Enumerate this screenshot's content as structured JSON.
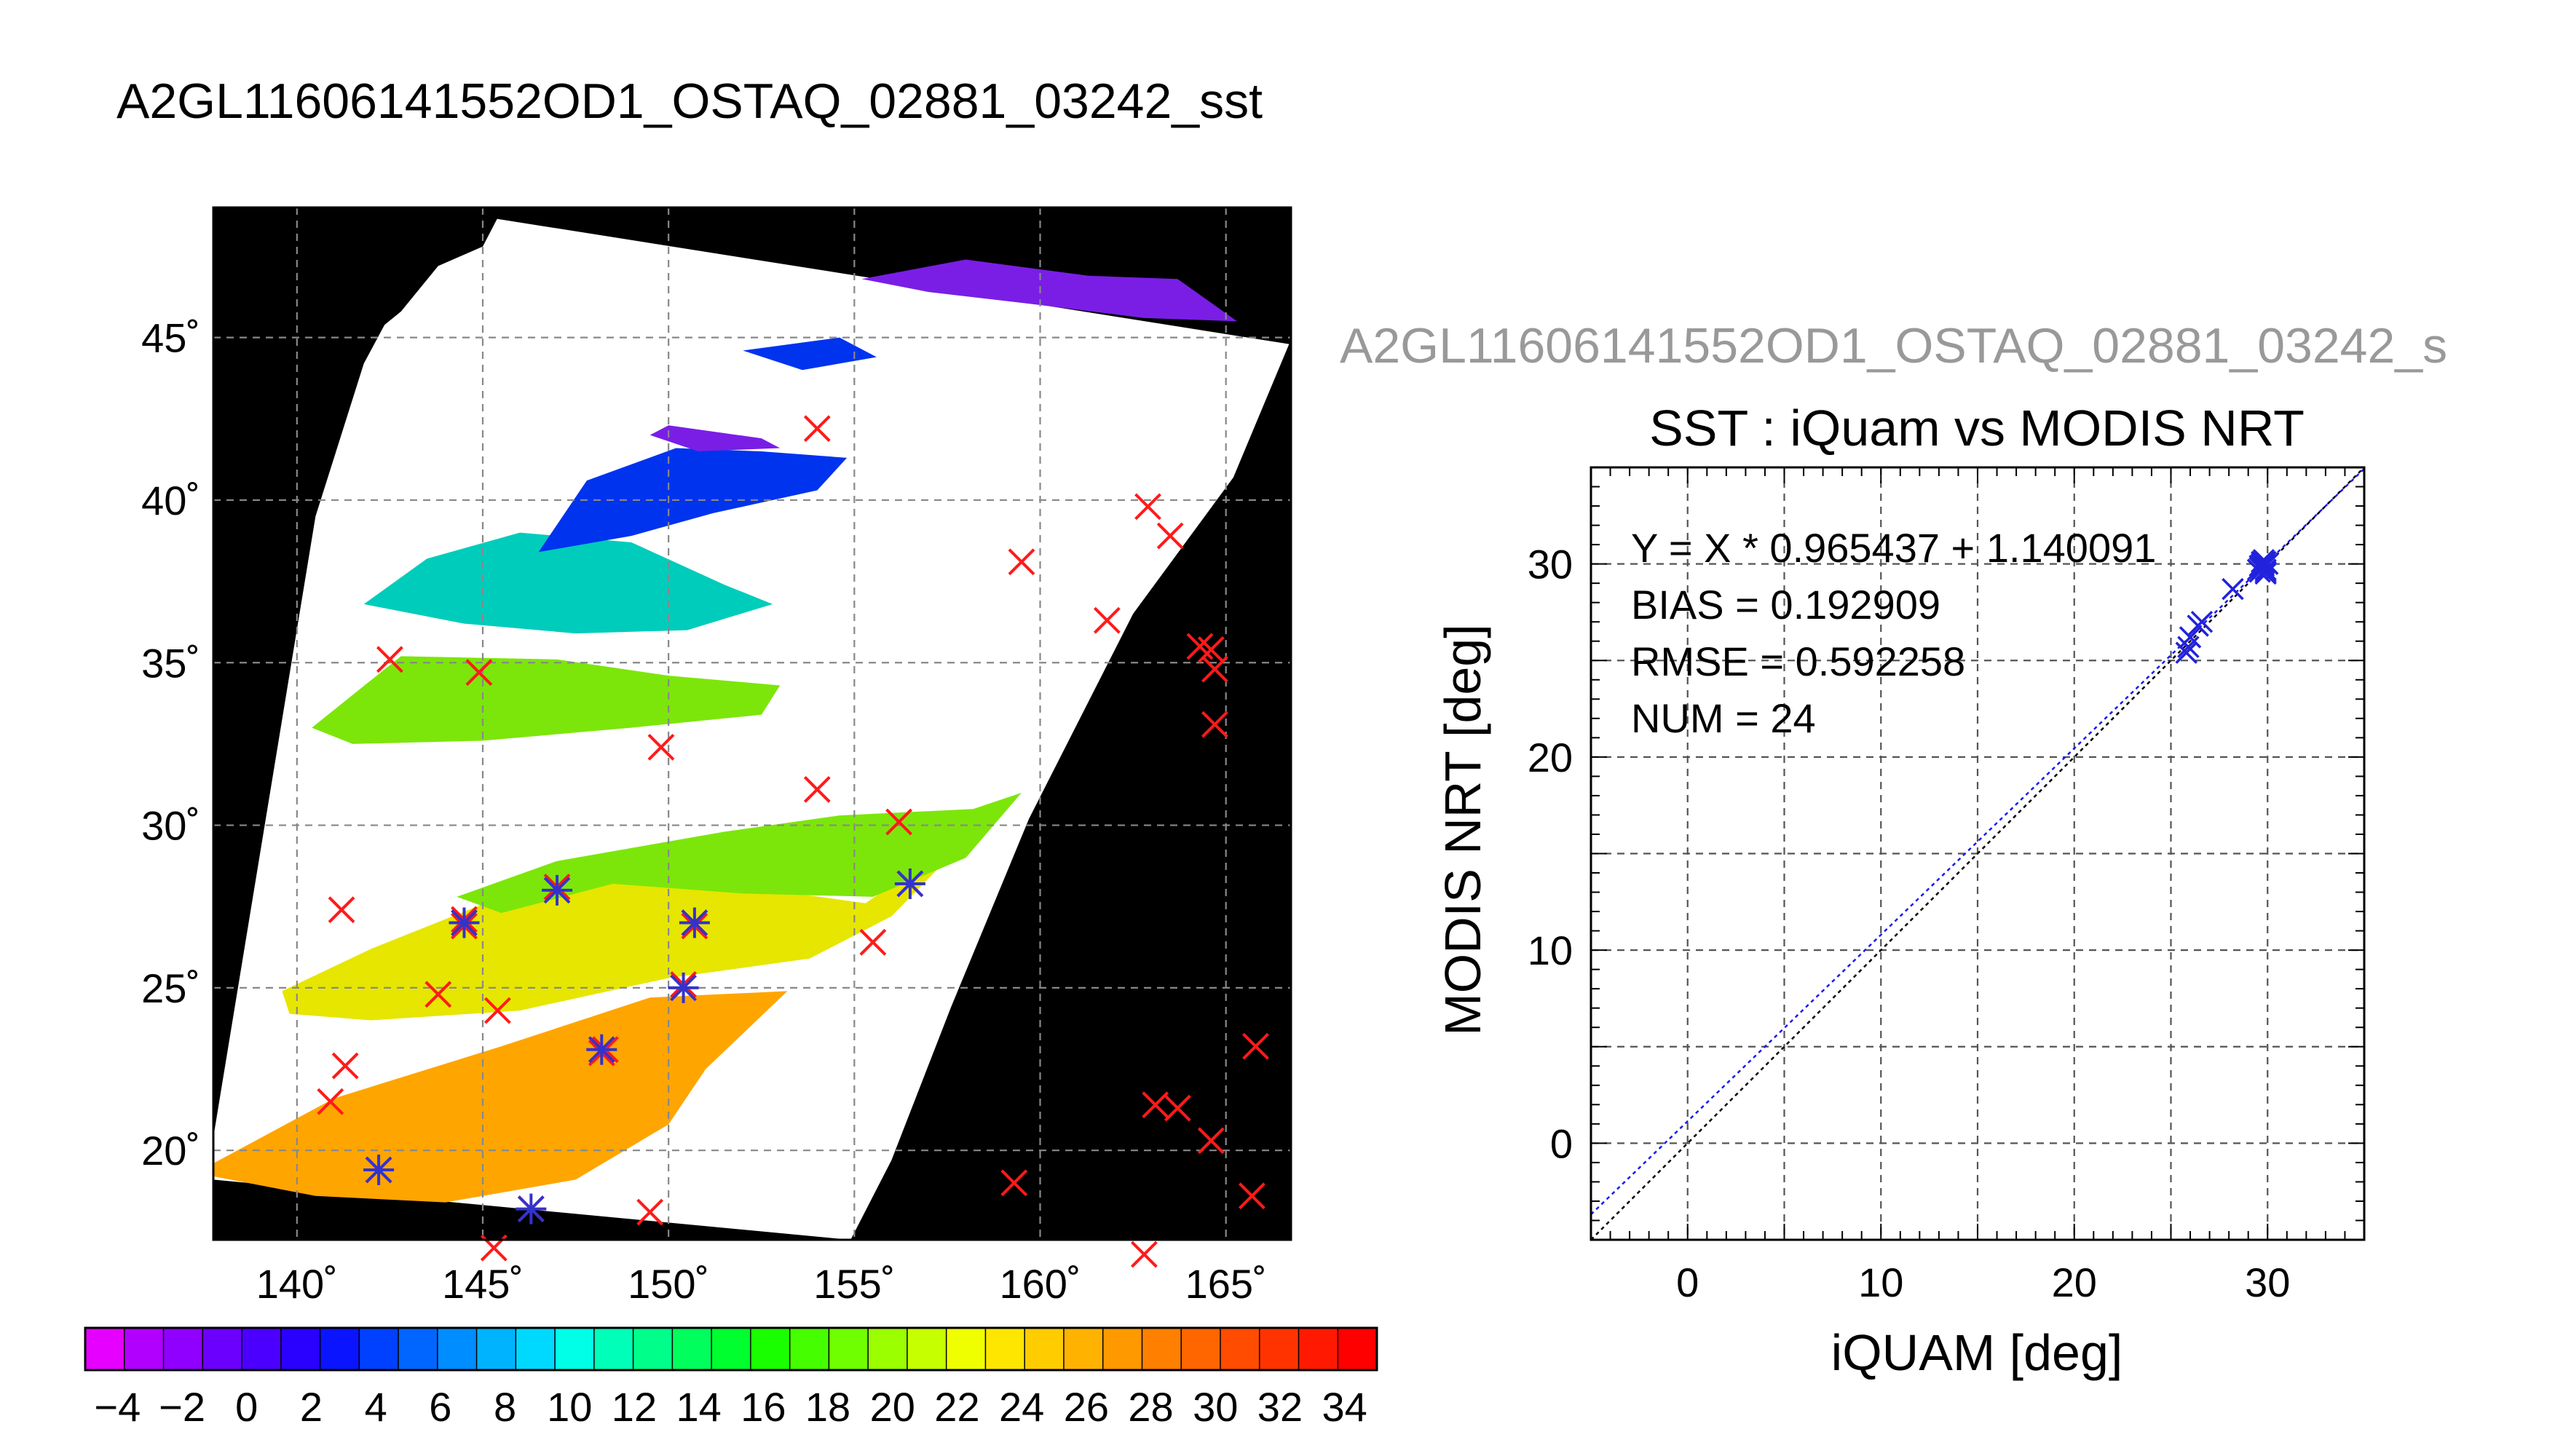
{
  "figure_title": "A2GL11606141552OD1_OSTAQ_02881_03242_sst",
  "chart_data": [
    {
      "type": "map",
      "title": "",
      "lon_ticks": [
        140,
        145,
        150,
        155,
        160,
        165
      ],
      "lat_ticks": [
        20,
        25,
        30,
        35,
        40,
        45
      ],
      "lon_tick_labels": [
        "140˚",
        "145˚",
        "150˚",
        "155˚",
        "160˚",
        "165˚"
      ],
      "lat_tick_labels": [
        "20˚",
        "25˚",
        "30˚",
        "35˚",
        "40˚",
        "45˚"
      ],
      "lon_range": [
        137.75,
        166.75
      ],
      "lat_range": [
        17.25,
        49.0
      ],
      "grid": true,
      "sst_bands": [
        {
          "label": "orange",
          "color": "#ffa500"
        },
        {
          "label": "yellow",
          "color": "#e6e600"
        },
        {
          "label": "light-green",
          "color": "#7ce60a"
        },
        {
          "label": "cyan",
          "color": "#00ccbb"
        },
        {
          "label": "blue",
          "color": "#0033ee"
        },
        {
          "label": "violet",
          "color": "#7a1ee6"
        }
      ],
      "buoy_points_red_x": [
        [
          154.0,
          42.2
        ],
        [
          162.9,
          39.8
        ],
        [
          163.5,
          38.9
        ],
        [
          159.5,
          38.1
        ],
        [
          161.8,
          36.3
        ],
        [
          164.3,
          35.5
        ],
        [
          164.6,
          35.4
        ],
        [
          164.7,
          34.8
        ],
        [
          164.7,
          33.1
        ],
        [
          142.5,
          35.1
        ],
        [
          144.9,
          34.7
        ],
        [
          149.8,
          32.4
        ],
        [
          154.0,
          31.1
        ],
        [
          156.2,
          30.1
        ],
        [
          141.2,
          27.4
        ],
        [
          144.5,
          27.1
        ],
        [
          144.5,
          26.9
        ],
        [
          147.0,
          28.1
        ],
        [
          150.7,
          26.9
        ],
        [
          156.5,
          28.2
        ],
        [
          155.5,
          26.4
        ],
        [
          143.8,
          24.8
        ],
        [
          145.4,
          24.3
        ],
        [
          150.4,
          25.1
        ],
        [
          148.3,
          23.1
        ],
        [
          148.2,
          23.0
        ],
        [
          141.3,
          22.6
        ],
        [
          140.9,
          21.5
        ],
        [
          163.1,
          21.4
        ],
        [
          163.7,
          21.3
        ],
        [
          165.8,
          23.2
        ],
        [
          164.6,
          20.3
        ],
        [
          142.2,
          19.4
        ],
        [
          146.3,
          18.2
        ],
        [
          149.5,
          18.1
        ],
        [
          159.3,
          19.0
        ],
        [
          165.7,
          18.6
        ],
        [
          145.3,
          17.0
        ],
        [
          162.8,
          16.8
        ]
      ],
      "matched_points_blue_star": [
        [
          144.5,
          27.0
        ],
        [
          147.0,
          28.0
        ],
        [
          150.7,
          27.0
        ],
        [
          156.5,
          28.2
        ],
        [
          150.4,
          25.0
        ],
        [
          148.2,
          23.1
        ],
        [
          142.2,
          19.4
        ],
        [
          146.3,
          18.2
        ]
      ]
    },
    {
      "type": "colorbar",
      "tick_labels": [
        "−4",
        "−2",
        "0",
        "2",
        "4",
        "6",
        "8",
        "10",
        "12",
        "14",
        "16",
        "18",
        "20",
        "22",
        "24",
        "26",
        "28",
        "30",
        "32",
        "34"
      ],
      "range": [
        -5,
        35
      ],
      "colors": [
        "#e600ff",
        "#b200ff",
        "#9000ff",
        "#6c00ff",
        "#4b00ff",
        "#2a00ff",
        "#0a14ff",
        "#0040ff",
        "#0066ff",
        "#008dff",
        "#00b3ff",
        "#00d9ff",
        "#00ffe6",
        "#00ffb8",
        "#00ff8a",
        "#00ff5c",
        "#00ff2e",
        "#1aff00",
        "#45ff00",
        "#70ff00",
        "#9bff00",
        "#c6ff00",
        "#f0ff00",
        "#ffe600",
        "#ffcc00",
        "#ffb300",
        "#ff9900",
        "#ff7f00",
        "#ff6600",
        "#ff4c00",
        "#ff3300",
        "#ff1900",
        "#ff0000"
      ]
    },
    {
      "type": "scatter",
      "overflow_title": "A2GL11606141552OD1_OSTAQ_02881_03242_s",
      "title": "SST : iQuam vs MODIS NRT",
      "xlabel": "iQUAM [deg]",
      "ylabel": "MODIS NRT [deg]",
      "xlim": [
        -5,
        35
      ],
      "ylim": [
        -5,
        35
      ],
      "xticks": [
        0,
        10,
        20,
        30
      ],
      "yticks": [
        0,
        10,
        20,
        30
      ],
      "grid": true,
      "stats": {
        "equation": "Y = X * 0.965437 + 1.140091",
        "bias": "BIAS = 0.192909",
        "rmse": "RMSE = 0.592258",
        "num": "NUM = 24"
      },
      "fit_line": {
        "slope": 0.965437,
        "intercept": 1.140091
      },
      "one_to_one_line": {
        "slope": 1,
        "intercept": 0
      },
      "series": [
        {
          "x": [
            25.8,
            25.9,
            26.0,
            26.4,
            26.6,
            28.2,
            29.5,
            29.6,
            29.7,
            29.8,
            29.8,
            29.9,
            29.9,
            30.0,
            29.6,
            29.7,
            29.8,
            29.7,
            29.9,
            29.8,
            29.6,
            29.7,
            29.8,
            29.9
          ],
          "y": [
            25.4,
            25.7,
            26.2,
            26.8,
            27.0,
            28.7,
            29.7,
            29.9,
            30.0,
            30.1,
            29.8,
            30.1,
            29.5,
            30.0,
            29.6,
            29.8,
            30.2,
            29.9,
            29.7,
            30.0,
            29.8,
            30.1,
            29.9,
            29.6
          ]
        }
      ]
    }
  ]
}
